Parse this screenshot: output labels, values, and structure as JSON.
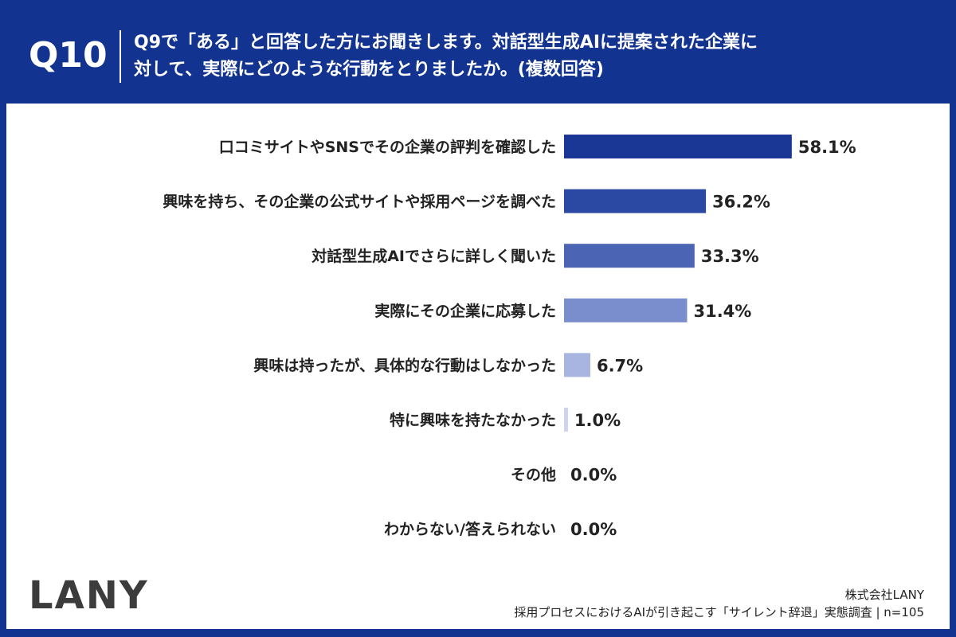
{
  "header": {
    "q_label": "Q10",
    "question_line1": "Q9で「ある」と回答した方にお聞きします。対話型生成AIに提案された企業に",
    "question_line2": "対して、実際にどのような行動をとりましたか。(複数回答)"
  },
  "footer": {
    "logo": "LANY",
    "company": "株式会社LANY",
    "survey": "採用プロセスにおけるAIが引き起こす「サイレント辞退」実態調査 | n=105"
  },
  "colors": {
    "frame": "#12338f",
    "text": "#222222",
    "bars": [
      "#1a3796",
      "#2b49a3",
      "#4c64b4",
      "#7a8dcc",
      "#a8b5e0",
      "#ccd3ee",
      "#dde2f4",
      "#dde2f4"
    ]
  },
  "chart_data": {
    "type": "bar",
    "orientation": "horizontal",
    "categories": [
      "口コミサイトやSNSでその企業の評判を確認した",
      "興味を持ち、その企業の公式サイトや採用ページを調べた",
      "対話型生成AIでさらに詳しく聞いた",
      "実際にその企業に応募した",
      "興味は持ったが、具体的な行動はしなかった",
      "特に興味を持たなかった",
      "その他",
      "わからない/答えられない"
    ],
    "values": [
      58.1,
      36.2,
      33.3,
      31.4,
      6.7,
      1.0,
      0.0,
      0.0
    ],
    "value_labels": [
      "58.1%",
      "36.2%",
      "33.3%",
      "31.4%",
      "6.7%",
      "1.0%",
      "0.0%",
      "0.0%"
    ],
    "xlim": [
      0,
      100
    ],
    "grid": false,
    "legend": "none"
  }
}
